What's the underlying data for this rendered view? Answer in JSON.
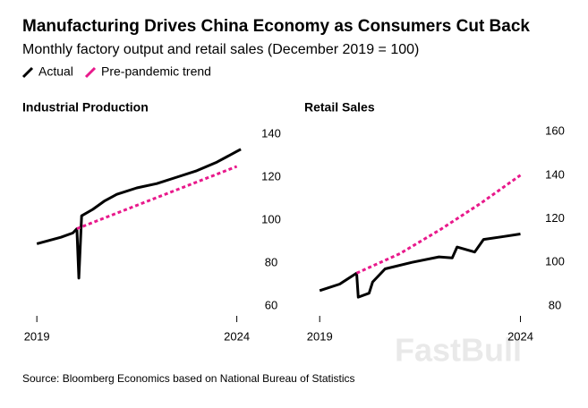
{
  "title": "Manufacturing Drives China Economy as Consumers Cut Back",
  "subtitle": "Monthly factory output and retail sales (December 2019 = 100)",
  "source": "Source: Bloomberg Economics based on National Bureau of Statistics",
  "watermark": "FastBull",
  "chart_data": [
    {
      "type": "line",
      "title": "Industrial Production",
      "xlim": [
        2018.75,
        2024.3
      ],
      "xticks": [
        2019,
        2024
      ],
      "ylim": [
        55,
        145
      ],
      "yticks": [
        60,
        80,
        100,
        120,
        140
      ],
      "series": [
        {
          "name": "Actual",
          "color": "#000000",
          "x": [
            2019.0,
            2019.3,
            2019.6,
            2019.9,
            2020.0,
            2020.05,
            2020.12,
            2020.4,
            2020.7,
            2021.0,
            2021.5,
            2022.0,
            2022.5,
            2023.0,
            2023.5,
            2024.0,
            2024.1
          ],
          "values": [
            89,
            90.5,
            92,
            94,
            96,
            73,
            102,
            105,
            109,
            112,
            115,
            117,
            120,
            123,
            127,
            132,
            133
          ]
        },
        {
          "name": "Pre-pandemic trend",
          "color": "#e8198b",
          "dashed": true,
          "x": [
            2020.0,
            2024.0
          ],
          "values": [
            96,
            125
          ]
        }
      ]
    },
    {
      "type": "line",
      "title": "Retail Sales",
      "xlim": [
        2018.75,
        2024.3
      ],
      "xticks": [
        2019,
        2024
      ],
      "ylim": [
        75,
        165
      ],
      "yticks": [
        80,
        100,
        120,
        140,
        160
      ],
      "series": [
        {
          "color": "#000000",
          "x": [
            2019.0,
            2019.5,
            2019.92,
            2019.96,
            2020.23,
            2020.32,
            2020.63,
            2021.3,
            2021.97,
            2022.3,
            2022.42,
            2022.86,
            2023.08,
            2023.53,
            2024.0
          ],
          "values": [
            87,
            90,
            95,
            84,
            85.8,
            91,
            97,
            100,
            102.5,
            102,
            107,
            104.7,
            110.5,
            111.7,
            113
          ]
        },
        {
          "color": "#e8198b",
          "dashed": true,
          "x": [
            2019.92,
            2021.0,
            2022.0,
            2023.0,
            2024.0
          ],
          "values": [
            95,
            104,
            115,
            127,
            140
          ]
        }
      ]
    }
  ]
}
